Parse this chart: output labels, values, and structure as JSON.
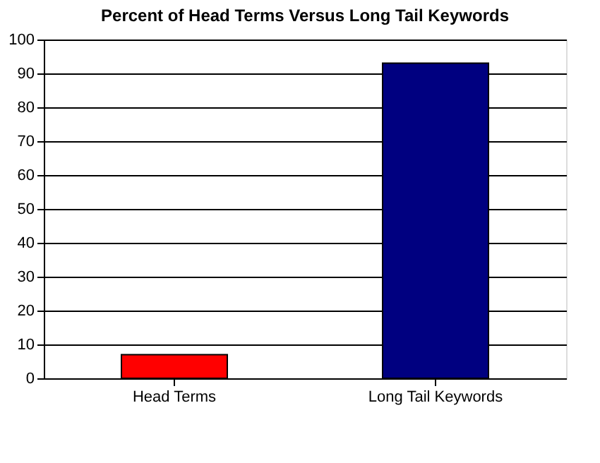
{
  "chart_data": {
    "type": "bar",
    "title": "Percent of Head Terms Versus Long Tail Keywords",
    "categories": [
      "Head Terms",
      "Long Tail Keywords"
    ],
    "values": [
      7,
      93
    ],
    "colors": [
      "#ff0000",
      "#000080"
    ],
    "ylim": [
      0,
      100
    ],
    "yticks": [
      0,
      10,
      20,
      30,
      40,
      50,
      60,
      70,
      80,
      90,
      100
    ],
    "grid": "y"
  }
}
